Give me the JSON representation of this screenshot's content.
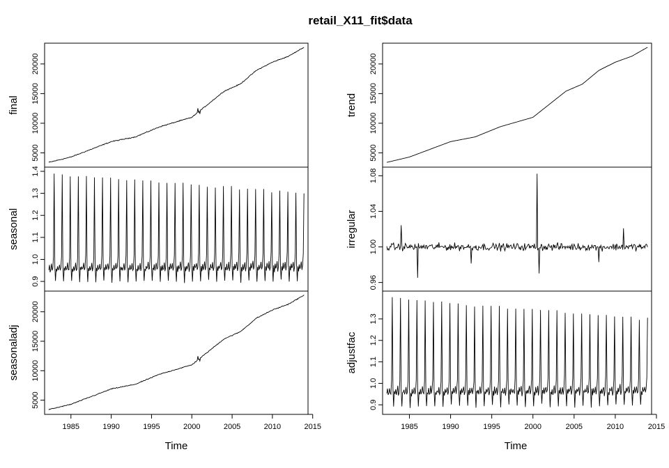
{
  "title": "retail_X11_fit$data",
  "xlabel": "Time",
  "chart_data": [
    {
      "type": "line",
      "ylabel": "final",
      "xlim": [
        1982.25,
        2013.9
      ],
      "ylim": [
        3300,
        22800
      ],
      "yticks": [
        5000,
        10000,
        15000,
        20000
      ],
      "ytick_labels": [
        "5000",
        "10000",
        "15000",
        "20000"
      ],
      "trend_knots": [
        [
          1982.25,
          3400
        ],
        [
          1985,
          4300
        ],
        [
          1990,
          6900
        ],
        [
          1993,
          7700
        ],
        [
          1996,
          9400
        ],
        [
          2000,
          11000
        ],
        [
          2004,
          15400
        ],
        [
          2006,
          16600
        ],
        [
          2008,
          18900
        ],
        [
          2010,
          20300
        ],
        [
          2012,
          21300
        ],
        [
          2013.9,
          22800
        ]
      ],
      "noise_amplitude": 110,
      "anomalies": [
        [
          2000.75,
          700
        ],
        [
          2001.0,
          -500
        ]
      ]
    },
    {
      "type": "line",
      "ylabel": "seasonal",
      "xlim": [
        1982.25,
        2013.9
      ],
      "ylim": [
        0.875,
        1.4
      ],
      "yticks": [
        0.9,
        1.0,
        1.1,
        1.2,
        1.3,
        1.4
      ],
      "ytick_labels": [
        "0.9",
        "1.0",
        "1.1",
        "1.2",
        "1.3",
        "1.4"
      ],
      "monthly_factors_early": [
        0.97,
        0.9,
        0.96,
        0.95,
        0.97,
        0.95,
        0.96,
        0.98,
        0.95,
        0.96,
        1.01,
        1.39
      ],
      "monthly_factors_late": [
        0.97,
        0.9,
        0.97,
        0.95,
        0.98,
        0.96,
        0.97,
        0.99,
        0.95,
        0.97,
        1.03,
        1.3
      ],
      "wiggle": 0.01
    },
    {
      "type": "line",
      "ylabel": "seasonaladj",
      "xlim": [
        1982.25,
        2013.9
      ],
      "ylim": [
        3300,
        22800
      ],
      "yticks": [
        5000,
        10000,
        15000,
        20000
      ],
      "ytick_labels": [
        "5000",
        "10000",
        "15000",
        "20000"
      ],
      "trend_knots": [
        [
          1982.25,
          3400
        ],
        [
          1985,
          4300
        ],
        [
          1990,
          6900
        ],
        [
          1993,
          7700
        ],
        [
          1996,
          9400
        ],
        [
          2000,
          11000
        ],
        [
          2004,
          15400
        ],
        [
          2006,
          16600
        ],
        [
          2008,
          18900
        ],
        [
          2010,
          20300
        ],
        [
          2012,
          21300
        ],
        [
          2013.9,
          22800
        ]
      ],
      "noise_amplitude": 110,
      "anomalies": [
        [
          2000.75,
          700
        ],
        [
          2001.0,
          -500
        ]
      ]
    },
    {
      "type": "line",
      "ylabel": "trend",
      "xlim": [
        1982.25,
        2013.9
      ],
      "ylim": [
        3300,
        22800
      ],
      "yticks": [
        5000,
        10000,
        15000,
        20000
      ],
      "ytick_labels": [
        "5000",
        "10000",
        "15000",
        "20000"
      ],
      "trend_knots": [
        [
          1982.25,
          3400
        ],
        [
          1985,
          4300
        ],
        [
          1990,
          6900
        ],
        [
          1993,
          7700
        ],
        [
          1996,
          9400
        ],
        [
          2000,
          11000
        ],
        [
          2004,
          15400
        ],
        [
          2006,
          16600
        ],
        [
          2008,
          18900
        ],
        [
          2010,
          20300
        ],
        [
          2012,
          21300
        ],
        [
          2013.9,
          22800
        ]
      ],
      "noise_amplitude": 0
    },
    {
      "type": "line",
      "ylabel": "irregular",
      "xlim": [
        1982.25,
        2013.9
      ],
      "ylim": [
        0.955,
        1.085
      ],
      "yticks": [
        0.96,
        1.0,
        1.04,
        1.08
      ],
      "ytick_labels": [
        "0.96",
        "1.00",
        "1.04",
        "1.08"
      ],
      "center": 1.0,
      "noise_amplitude": 0.006,
      "anomalies": [
        [
          1986.0,
          -0.035
        ],
        [
          1984.0,
          0.022
        ],
        [
          2000.5,
          0.081
        ],
        [
          2000.75,
          -0.027
        ],
        [
          2011.0,
          0.022
        ],
        [
          1992.5,
          -0.02
        ],
        [
          2008.0,
          -0.02
        ]
      ]
    },
    {
      "type": "line",
      "ylabel": "adjustfac",
      "xlim": [
        1982.25,
        2013.9
      ],
      "ylim": [
        0.875,
        1.41
      ],
      "yticks": [
        0.9,
        1.0,
        1.1,
        1.2,
        1.3
      ],
      "ytick_labels": [
        "0.9",
        "1.0",
        "1.1",
        "1.2",
        "1.3"
      ],
      "monthly_factors_early": [
        0.97,
        0.89,
        0.96,
        0.95,
        0.97,
        0.95,
        0.96,
        0.98,
        0.95,
        0.96,
        1.01,
        1.4
      ],
      "monthly_factors_late": [
        0.97,
        0.9,
        0.97,
        0.95,
        0.98,
        0.96,
        0.97,
        0.99,
        0.95,
        0.97,
        1.03,
        1.3
      ],
      "wiggle": 0.015
    }
  ],
  "xaxis": {
    "ticks": [
      1985,
      1990,
      1995,
      2000,
      2005,
      2010,
      2015
    ],
    "tick_labels": [
      "1985",
      "1990",
      "1995",
      "2000",
      "2005",
      "2010",
      "2015"
    ]
  }
}
